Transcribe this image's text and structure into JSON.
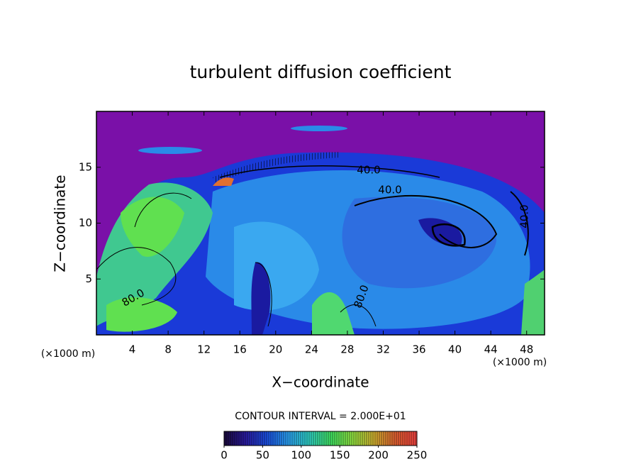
{
  "chart_data": {
    "type": "contour",
    "title": "turbulent diffusion coefficient",
    "x_label": "X−coordinate",
    "y_label": "Z−coordinate",
    "x_unit_label": "(×1000 m)",
    "x_unit_label_right": "(×1000 m)",
    "xlim": [
      0,
      50
    ],
    "xticks": [
      4,
      8,
      12,
      16,
      20,
      24,
      28,
      32,
      36,
      40,
      44,
      48
    ],
    "ylim": [
      0,
      20
    ],
    "yticks": [
      5,
      10,
      15
    ],
    "contour_interval_label": "CONTOUR INTERVAL = 2.000E+01",
    "contour_labels": [
      "40.0",
      "40.0",
      "40.0",
      "80.0",
      "80.0"
    ],
    "colorbar": {
      "lim": [
        0,
        250
      ],
      "ticks": [
        0,
        50,
        100,
        150,
        200,
        250
      ],
      "colormap": [
        "#1a0a3a",
        "#2a1aa0",
        "#1a4ee0",
        "#2aa0f0",
        "#30d0c0",
        "#40e060",
        "#90e040",
        "#d0b030",
        "#e06030",
        "#f04040"
      ]
    }
  }
}
